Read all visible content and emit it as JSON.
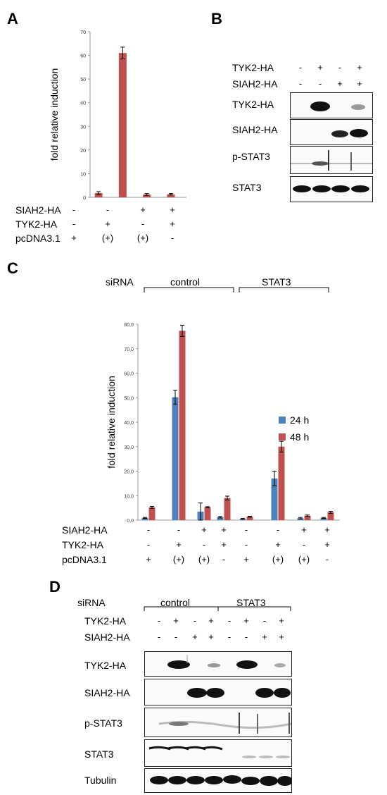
{
  "panels": {
    "A": "A",
    "B": "B",
    "C": "C",
    "D": "D"
  },
  "panel_a": {
    "row_labels": [
      "SIAH2-HA",
      "TYK2-HA",
      "pcDNA3.1"
    ],
    "signs": [
      [
        "-",
        "-",
        "+",
        "+"
      ],
      [
        "-",
        "+",
        "-",
        "+"
      ],
      [
        "+",
        "(+)",
        "(+)",
        "-"
      ]
    ]
  },
  "panel_b": {
    "header_labels": [
      "TYK2-HA",
      "SIAH2-HA"
    ],
    "signs": [
      [
        "-",
        "+",
        "-",
        "+"
      ],
      [
        "-",
        "-",
        "+",
        "+"
      ]
    ],
    "blot_labels": [
      "TYK2-HA",
      "SIAH2-HA",
      "p-STAT3",
      "STAT3"
    ]
  },
  "panel_c": {
    "sirna_label": "siRNA",
    "groups": [
      "control",
      "STAT3"
    ],
    "row_labels": [
      "SIAH2-HA",
      "TYK2-HA",
      "pcDNA3.1"
    ],
    "signs": [
      [
        "-",
        "-",
        "+",
        "+",
        "-",
        "-",
        "+",
        "+"
      ],
      [
        "-",
        "+",
        "-",
        "+",
        "-",
        "+",
        "-",
        "+"
      ],
      [
        "+",
        "(+)",
        "(+)",
        "-",
        "+",
        "(+)",
        "(+)",
        "-"
      ]
    ]
  },
  "panel_d": {
    "sirna_label": "siRNA",
    "groups": [
      "control",
      "STAT3"
    ],
    "header_labels": [
      "TYK2-HA",
      "SIAH2-HA"
    ],
    "signs": [
      [
        "-",
        "+",
        "-",
        "+",
        "-",
        "+",
        "-",
        "+"
      ],
      [
        "-",
        "-",
        "+",
        "+",
        "-",
        "-",
        "+",
        "+"
      ]
    ],
    "blot_labels": [
      "TYK2-HA",
      "SIAH2-HA",
      "p-STAT3",
      "STAT3",
      "Tubulin"
    ]
  },
  "chart_data": [
    {
      "type": "bar",
      "panel": "A",
      "ylabel": "fold relative induction",
      "ylim": [
        0,
        70
      ],
      "yticks": [
        "0",
        "10",
        "20",
        "30",
        "40",
        "50",
        "60",
        "70"
      ],
      "color": "#c0504d",
      "values": [
        1.8,
        61,
        1.2,
        1.3
      ],
      "errors": [
        0.6,
        2.5,
        0.4,
        0.3
      ]
    },
    {
      "type": "bar",
      "panel": "C",
      "ylabel": "fold relative induction",
      "ylim": [
        0,
        80
      ],
      "yticks": [
        "0,0",
        "10,0",
        "20,0",
        "30,0",
        "40,0",
        "50,0",
        "60,0",
        "70,0",
        "80,0"
      ],
      "series": [
        {
          "name": "24 h",
          "color": "#4f81bd",
          "values": [
            0.9,
            50.2,
            3.5,
            1.2,
            0.5,
            17,
            0.8,
            0.9
          ],
          "errors": [
            0.2,
            2.8,
            3.5,
            0.3,
            0.2,
            3.0,
            0.3,
            0.2
          ]
        },
        {
          "name": "48 h",
          "color": "#c0504d",
          "values": [
            5.2,
            77.3,
            5.3,
            9.0,
            1.4,
            30,
            1.8,
            3.2
          ],
          "errors": [
            0.4,
            2.3,
            0.2,
            0.8,
            0.2,
            2.2,
            0.3,
            0.4
          ]
        }
      ]
    }
  ]
}
